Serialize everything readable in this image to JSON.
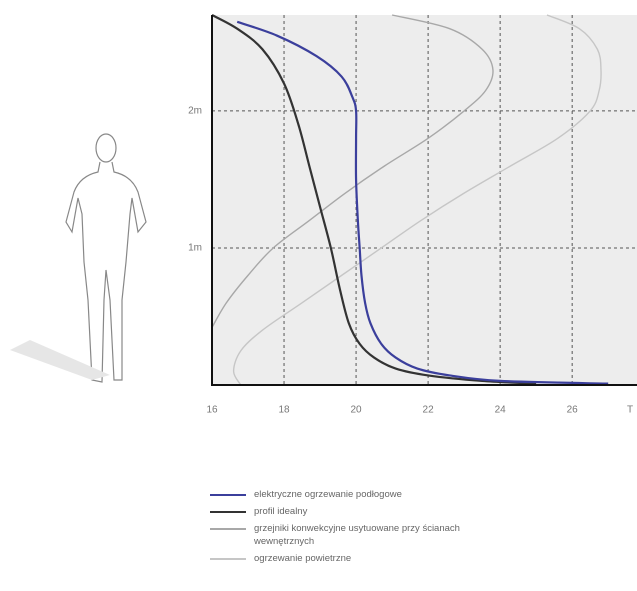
{
  "chart_data": {
    "type": "line",
    "xlabel": "T",
    "xlim": [
      16,
      27.8
    ],
    "ylim": [
      0,
      2.7
    ],
    "xticks": [
      16,
      18,
      20,
      22,
      24,
      26
    ],
    "yticks": [
      {
        "value": 1,
        "label": "1m"
      },
      {
        "value": 2,
        "label": "2m"
      }
    ],
    "grid": true,
    "series": [
      {
        "name": "elektryczne ogrzewanie podłogowe",
        "color": "#3b3f9c",
        "x": [
          16.7,
          17.8,
          18.9,
          19.6,
          19.9,
          20.0,
          20.0,
          20.0,
          20.05,
          20.1,
          20.15,
          20.25,
          20.4,
          20.7,
          21.1,
          21.7,
          22.6,
          24.0,
          27.0
        ],
        "values": [
          2.65,
          2.55,
          2.4,
          2.25,
          2.1,
          2.0,
          1.8,
          1.5,
          1.2,
          1.0,
          0.8,
          0.6,
          0.45,
          0.3,
          0.2,
          0.12,
          0.07,
          0.03,
          0.01
        ]
      },
      {
        "name": "profil idealny",
        "color": "#333333",
        "x": [
          16.0,
          16.7,
          17.4,
          18.0,
          18.4,
          18.7,
          19.0,
          19.3,
          19.55,
          19.8,
          20.1,
          20.5,
          21.1,
          22.0,
          23.5,
          25.0
        ],
        "values": [
          2.7,
          2.6,
          2.45,
          2.2,
          1.9,
          1.6,
          1.3,
          1.0,
          0.7,
          0.45,
          0.3,
          0.2,
          0.12,
          0.07,
          0.03,
          0.01
        ]
      },
      {
        "name": "grzejniki konwekcyjne usytuowane przy ścianach wewnętrznych",
        "color": "#a8a8a8",
        "x": [
          21.0,
          22.6,
          23.5,
          23.8,
          23.6,
          23.0,
          22.0,
          20.8,
          19.7,
          18.7,
          17.7,
          17.0,
          16.4,
          16.0
        ],
        "values": [
          2.7,
          2.6,
          2.45,
          2.3,
          2.15,
          2.0,
          1.8,
          1.6,
          1.4,
          1.2,
          1.0,
          0.8,
          0.6,
          0.42
        ]
      },
      {
        "name": "ogrzewanie powietrzne",
        "color": "#c6c6c6",
        "x": [
          25.3,
          26.2,
          26.7,
          26.8,
          26.75,
          26.5,
          25.6,
          24.3,
          23.0,
          21.8,
          20.7,
          19.6,
          18.5,
          17.4,
          16.8,
          16.6,
          16.8
        ],
        "values": [
          2.7,
          2.6,
          2.45,
          2.3,
          2.15,
          2.0,
          1.8,
          1.6,
          1.4,
          1.2,
          1.0,
          0.8,
          0.6,
          0.4,
          0.25,
          0.1,
          0.0
        ]
      }
    ]
  }
}
